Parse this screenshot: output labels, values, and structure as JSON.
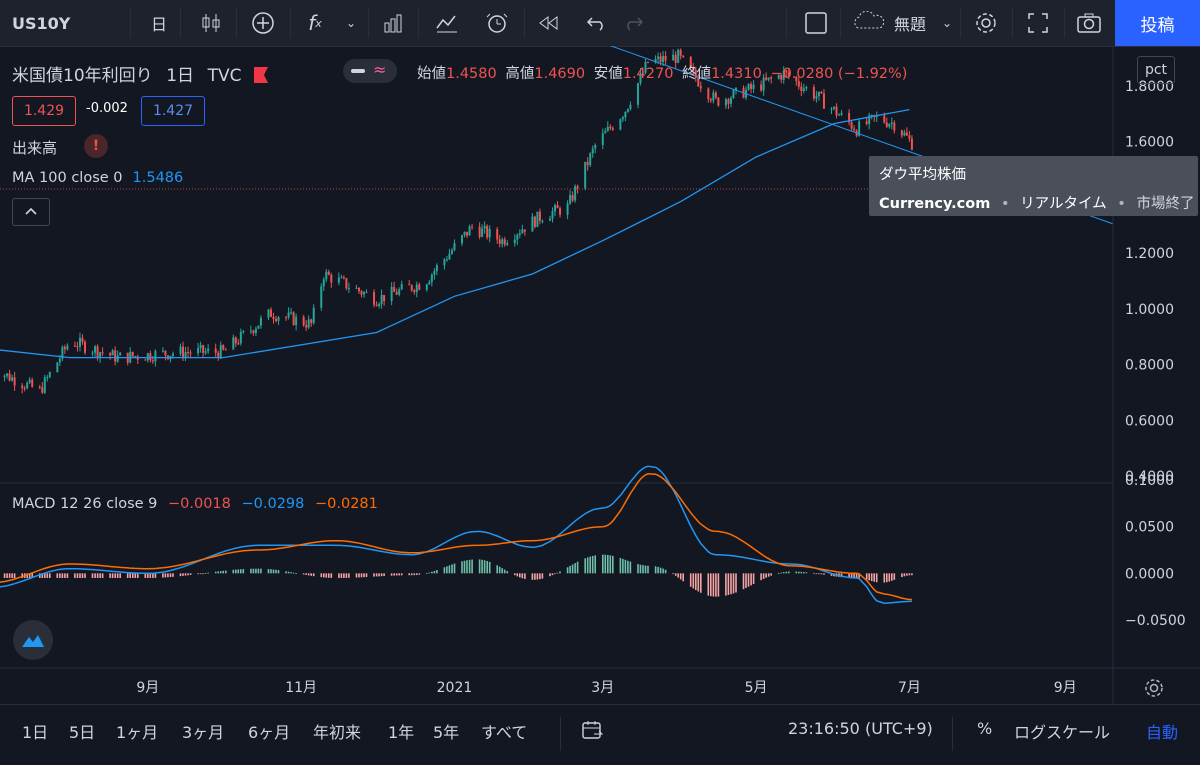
{
  "toolbar": {
    "symbol": "US10Y",
    "interval": "日",
    "fx_label": "f",
    "fx_sub": "x",
    "layout_name": "無題",
    "post_label": "投稿",
    "icons": [
      "candles-icon",
      "plus-circle-icon",
      "indicator-icon",
      "chevron-down-icon",
      "compare-icon",
      "bar-chart-icon",
      "alert-icon",
      "replay-icon",
      "undo-icon",
      "redo-icon",
      "square-icon",
      "cloud-icon",
      "gear-icon",
      "fullscreen-icon",
      "camera-icon"
    ]
  },
  "legend": {
    "title": "米国債10年利回り",
    "interval": "1日",
    "exchange": "TVC",
    "open_label": "始値",
    "open": "1.4580",
    "high_label": "高値",
    "high": "1.4690",
    "low_label": "安値",
    "low": "1.4270",
    "close_label": "終値",
    "close": "1.4310",
    "change": "−0.0280 (−1.92%)",
    "bid": "1.429",
    "spread": "-0.002",
    "ask": "1.427",
    "volume_label": "出来高",
    "ma_label": "MA 100 close 0",
    "ma_value": "1.5486",
    "macd_label": "MACD 12 26 close 9",
    "macd_hist": "−0.0018",
    "macd_line": "−0.0298",
    "macd_signal": "−0.0281"
  },
  "price_scale": {
    "unit_button": "pct",
    "ticks": [
      "1.8000",
      "1.6000",
      "1.4000",
      "1.2000",
      "1.0000",
      "0.8000",
      "0.6000",
      "0.4000"
    ],
    "macd_ticks": [
      "0.1000",
      "0.0500",
      "0.0000",
      "−0.0500"
    ]
  },
  "time_axis": [
    "9月",
    "11月",
    "2021",
    "3月",
    "5月",
    "7月",
    "9月"
  ],
  "tooltip": {
    "title": "ダウ平均株価",
    "source": "Currency.com",
    "realtime": "リアルタイム",
    "status": "市場終了"
  },
  "bottom": {
    "ranges": [
      "1日",
      "5日",
      "1ヶ月",
      "3ヶ月",
      "6ヶ月",
      "年初来",
      "1年",
      "5年",
      "すべて"
    ],
    "time": "23:16:50 (UTC+9)",
    "pct": "%",
    "log": "ログスケール",
    "auto": "自動"
  },
  "colors": {
    "up": "#26a69a",
    "down": "#ef5350",
    "ma": "#2196f3",
    "signal": "#ff6d00",
    "bg": "#131722",
    "accent": "#2962ff"
  },
  "chart_data": {
    "type": "candlestick",
    "x_range": [
      "2020-07-01",
      "2021-09-20"
    ],
    "y_range": [
      0.4,
      1.8
    ],
    "ma100": {
      "x": [
        "2020-07-01",
        "2020-08-01",
        "2020-10-01",
        "2020-12-01",
        "2021-01-01",
        "2021-02-01",
        "2021-03-01",
        "2021-04-01",
        "2021-05-01",
        "2021-06-01",
        "2021-07-01"
      ],
      "y": [
        0.69,
        0.66,
        0.66,
        0.75,
        0.88,
        0.96,
        1.08,
        1.22,
        1.38,
        1.5,
        1.55
      ]
    },
    "close_path": {
      "x": [
        "2020-07-01",
        "2020-07-20",
        "2020-08-01",
        "2020-08-20",
        "2020-09-15",
        "2020-10-01",
        "2020-10-20",
        "2020-11-05",
        "2020-11-10",
        "2020-12-01",
        "2020-12-20",
        "2021-01-08",
        "2021-01-20",
        "2021-02-05",
        "2021-02-15",
        "2021-02-26",
        "2021-03-10",
        "2021-03-19",
        "2021-03-31",
        "2021-04-15",
        "2021-05-01",
        "2021-05-12",
        "2021-05-25",
        "2021-06-10",
        "2021-06-18",
        "2021-06-25",
        "2021-07-02"
      ],
      "y": [
        0.62,
        0.54,
        0.72,
        0.66,
        0.68,
        0.68,
        0.82,
        0.78,
        0.96,
        0.87,
        0.93,
        1.13,
        1.08,
        1.17,
        1.2,
        1.42,
        1.55,
        1.72,
        1.74,
        1.58,
        1.63,
        1.68,
        1.6,
        1.48,
        1.52,
        1.5,
        1.43
      ]
    },
    "trendline": {
      "x": [
        "2021-02-10",
        "2021-09-20"
      ],
      "y": [
        1.85,
        1.14
      ]
    },
    "macd": {
      "x": [
        "2020-07-01",
        "2020-08-01",
        "2020-09-01",
        "2020-10-15",
        "2020-11-15",
        "2020-12-15",
        "2021-01-10",
        "2021-02-01",
        "2021-03-01",
        "2021-03-20",
        "2021-04-15",
        "2021-05-15",
        "2021-06-10",
        "2021-06-20",
        "2021-07-02"
      ],
      "macd": [
        -0.015,
        0.005,
        0.0,
        0.03,
        0.03,
        0.02,
        0.045,
        0.028,
        0.07,
        0.115,
        0.02,
        0.01,
        -0.005,
        -0.032,
        -0.03
      ],
      "signal": [
        -0.01,
        0.01,
        0.005,
        0.025,
        0.035,
        0.022,
        0.03,
        0.035,
        0.05,
        0.107,
        0.045,
        0.008,
        0.0,
        -0.022,
        -0.028
      ]
    }
  }
}
